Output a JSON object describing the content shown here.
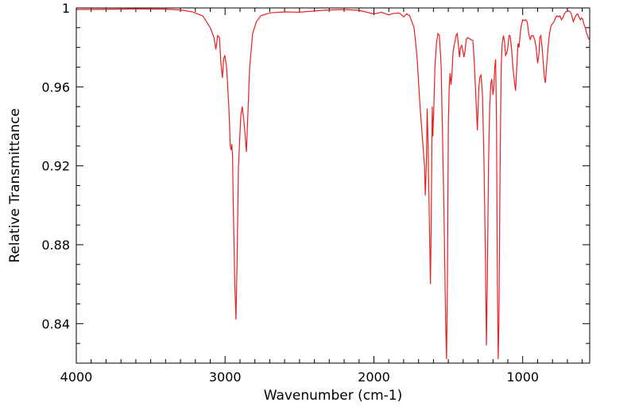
{
  "chart_data": {
    "type": "line",
    "title": "",
    "xlabel": "Wavenumber (cm-1)",
    "ylabel": "Relative Transmittance",
    "xlim": [
      4000,
      550
    ],
    "ylim": [
      0.82,
      1.0
    ],
    "x_ticks": [
      4000,
      3000,
      2000,
      1000
    ],
    "x_tick_labels": [
      "4000",
      "3000",
      "2000",
      "1000"
    ],
    "y_ticks": [
      0.84,
      0.88,
      0.92,
      0.96,
      1.0
    ],
    "y_tick_labels": [
      "0.84",
      "0.88",
      "0.92",
      "0.96",
      "1"
    ],
    "grid": false,
    "legend": "none",
    "series": [
      {
        "color": "#e8201e",
        "points": [
          [
            4000,
            0.9992
          ],
          [
            3800,
            0.9993
          ],
          [
            3600,
            0.9995
          ],
          [
            3400,
            0.9994
          ],
          [
            3300,
            0.999
          ],
          [
            3220,
            0.998
          ],
          [
            3150,
            0.996
          ],
          [
            3100,
            0.99
          ],
          [
            3075,
            0.985
          ],
          [
            3062,
            0.979
          ],
          [
            3050,
            0.986
          ],
          [
            3038,
            0.985
          ],
          [
            3028,
            0.972
          ],
          [
            3018,
            0.9645
          ],
          [
            3010,
            0.974
          ],
          [
            3002,
            0.976
          ],
          [
            2990,
            0.97
          ],
          [
            2975,
            0.95
          ],
          [
            2965,
            0.93
          ],
          [
            2960,
            0.928
          ],
          [
            2955,
            0.931
          ],
          [
            2950,
            0.925
          ],
          [
            2945,
            0.9
          ],
          [
            2935,
            0.86
          ],
          [
            2927,
            0.842
          ],
          [
            2920,
            0.87
          ],
          [
            2910,
            0.92
          ],
          [
            2895,
            0.945
          ],
          [
            2885,
            0.95
          ],
          [
            2870,
            0.94
          ],
          [
            2857,
            0.927
          ],
          [
            2850,
            0.94
          ],
          [
            2835,
            0.97
          ],
          [
            2815,
            0.987
          ],
          [
            2790,
            0.993
          ],
          [
            2760,
            0.996
          ],
          [
            2700,
            0.9975
          ],
          [
            2600,
            0.998
          ],
          [
            2500,
            0.9978
          ],
          [
            2400,
            0.9985
          ],
          [
            2300,
            0.999
          ],
          [
            2200,
            0.9992
          ],
          [
            2100,
            0.9988
          ],
          [
            2000,
            0.997
          ],
          [
            1950,
            0.9978
          ],
          [
            1900,
            0.9965
          ],
          [
            1870,
            0.9972
          ],
          [
            1830,
            0.9975
          ],
          [
            1800,
            0.9955
          ],
          [
            1780,
            0.997
          ],
          [
            1760,
            0.996
          ],
          [
            1730,
            0.99
          ],
          [
            1710,
            0.975
          ],
          [
            1690,
            0.95
          ],
          [
            1670,
            0.93
          ],
          [
            1660,
            0.92
          ],
          [
            1655,
            0.905
          ],
          [
            1648,
            0.92
          ],
          [
            1642,
            0.949
          ],
          [
            1636,
            0.93
          ],
          [
            1625,
            0.88
          ],
          [
            1620,
            0.86
          ],
          [
            1614,
            0.9
          ],
          [
            1608,
            0.95
          ],
          [
            1604,
            0.935
          ],
          [
            1598,
            0.948
          ],
          [
            1590,
            0.97
          ],
          [
            1580,
            0.982
          ],
          [
            1570,
            0.987
          ],
          [
            1560,
            0.986
          ],
          [
            1548,
            0.97
          ],
          [
            1530,
            0.9
          ],
          [
            1518,
            0.84
          ],
          [
            1512,
            0.822
          ],
          [
            1506,
            0.86
          ],
          [
            1500,
            0.94
          ],
          [
            1494,
            0.96
          ],
          [
            1488,
            0.967
          ],
          [
            1482,
            0.961
          ],
          [
            1476,
            0.966
          ],
          [
            1468,
            0.978
          ],
          [
            1458,
            0.982
          ],
          [
            1448,
            0.986
          ],
          [
            1440,
            0.987
          ],
          [
            1432,
            0.981
          ],
          [
            1425,
            0.975
          ],
          [
            1418,
            0.98
          ],
          [
            1410,
            0.981
          ],
          [
            1402,
            0.978
          ],
          [
            1395,
            0.975
          ],
          [
            1388,
            0.978
          ],
          [
            1380,
            0.984
          ],
          [
            1370,
            0.985
          ],
          [
            1350,
            0.984
          ],
          [
            1335,
            0.9835
          ],
          [
            1325,
            0.972
          ],
          [
            1315,
            0.955
          ],
          [
            1305,
            0.938
          ],
          [
            1295,
            0.96
          ],
          [
            1288,
            0.965
          ],
          [
            1280,
            0.966
          ],
          [
            1270,
            0.955
          ],
          [
            1260,
            0.92
          ],
          [
            1250,
            0.87
          ],
          [
            1244,
            0.829
          ],
          [
            1238,
            0.86
          ],
          [
            1230,
            0.92
          ],
          [
            1222,
            0.95
          ],
          [
            1214,
            0.962
          ],
          [
            1208,
            0.964
          ],
          [
            1200,
            0.956
          ],
          [
            1194,
            0.96
          ],
          [
            1188,
            0.97
          ],
          [
            1182,
            0.974
          ],
          [
            1176,
            0.94
          ],
          [
            1170,
            0.86
          ],
          [
            1165,
            0.822
          ],
          [
            1160,
            0.84
          ],
          [
            1152,
            0.92
          ],
          [
            1145,
            0.97
          ],
          [
            1138,
            0.982
          ],
          [
            1130,
            0.986
          ],
          [
            1122,
            0.983
          ],
          [
            1115,
            0.976
          ],
          [
            1108,
            0.977
          ],
          [
            1100,
            0.98
          ],
          [
            1092,
            0.986
          ],
          [
            1085,
            0.986
          ],
          [
            1076,
            0.98
          ],
          [
            1066,
            0.97
          ],
          [
            1055,
            0.962
          ],
          [
            1048,
            0.958
          ],
          [
            1040,
            0.97
          ],
          [
            1032,
            0.982
          ],
          [
            1025,
            0.98
          ],
          [
            1018,
            0.986
          ],
          [
            1010,
            0.991
          ],
          [
            1000,
            0.994
          ],
          [
            990,
            0.9935
          ],
          [
            980,
            0.994
          ],
          [
            970,
            0.993
          ],
          [
            960,
            0.987
          ],
          [
            950,
            0.984
          ],
          [
            940,
            0.986
          ],
          [
            930,
            0.986
          ],
          [
            920,
            0.984
          ],
          [
            910,
            0.98
          ],
          [
            900,
            0.972
          ],
          [
            892,
            0.976
          ],
          [
            885,
            0.985
          ],
          [
            878,
            0.986
          ],
          [
            870,
            0.98
          ],
          [
            862,
            0.972
          ],
          [
            855,
            0.965
          ],
          [
            848,
            0.962
          ],
          [
            840,
            0.97
          ],
          [
            830,
            0.98
          ],
          [
            820,
            0.987
          ],
          [
            810,
            0.991
          ],
          [
            800,
            0.992
          ],
          [
            790,
            0.993
          ],
          [
            780,
            0.995
          ],
          [
            770,
            0.996
          ],
          [
            760,
            0.9955
          ],
          [
            750,
            0.996
          ],
          [
            740,
            0.994
          ],
          [
            730,
            0.995
          ],
          [
            720,
            0.997
          ],
          [
            710,
            0.998
          ],
          [
            700,
            0.9985
          ],
          [
            690,
            0.9985
          ],
          [
            680,
            0.998
          ],
          [
            670,
            0.996
          ],
          [
            660,
            0.993
          ],
          [
            650,
            0.995
          ],
          [
            640,
            0.9965
          ],
          [
            630,
            0.997
          ],
          [
            620,
            0.995
          ],
          [
            612,
            0.994
          ],
          [
            605,
            0.995
          ],
          [
            598,
            0.9945
          ],
          [
            590,
            0.992
          ],
          [
            580,
            0.99
          ],
          [
            570,
            0.987
          ],
          [
            560,
            0.985
          ],
          [
            553,
            0.984
          ]
        ]
      }
    ]
  }
}
